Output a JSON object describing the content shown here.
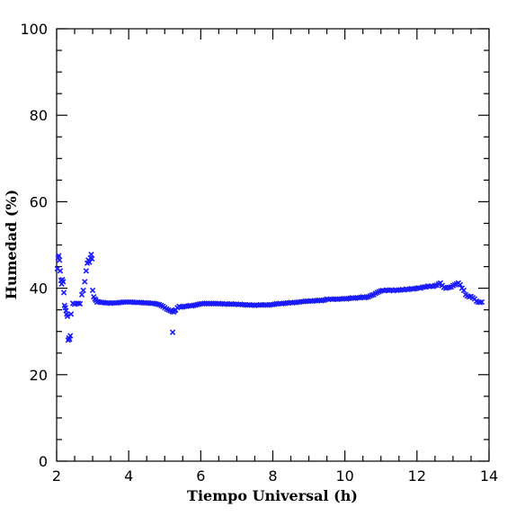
{
  "chart_data": {
    "type": "scatter",
    "xlabel": "Tiempo Universal (h)",
    "ylabel": "Humedad (%)",
    "xlim": [
      2,
      14
    ],
    "ylim": [
      0,
      100
    ],
    "x_ticks": [
      "2",
      "4",
      "6",
      "8",
      "10",
      "12",
      "14"
    ],
    "y_ticks": [
      "0",
      "20",
      "40",
      "60",
      "80",
      "100"
    ],
    "marker": "x",
    "grid": false,
    "legend": "none",
    "color": "#1a1aff",
    "series": [
      {
        "points": [
          [
            2.02,
            44.5
          ],
          [
            2.04,
            47.0
          ],
          [
            2.06,
            47.5
          ],
          [
            2.08,
            46.5
          ],
          [
            2.1,
            44.0
          ],
          [
            2.12,
            41.8
          ],
          [
            2.14,
            41.0
          ],
          [
            2.16,
            42.0
          ],
          [
            2.18,
            41.5
          ],
          [
            2.2,
            39.0
          ],
          [
            2.22,
            36.0
          ],
          [
            2.24,
            35.5
          ],
          [
            2.26,
            34.8
          ],
          [
            2.28,
            34.0
          ],
          [
            2.3,
            33.5
          ],
          [
            2.32,
            28.0
          ],
          [
            2.34,
            28.5
          ],
          [
            2.36,
            28.2
          ],
          [
            2.38,
            29.0
          ],
          [
            2.4,
            34.0
          ],
          [
            2.45,
            36.5
          ],
          [
            2.5,
            36.3
          ],
          [
            2.55,
            36.5
          ],
          [
            2.6,
            36.5
          ],
          [
            2.65,
            36.4
          ],
          [
            2.7,
            38.5
          ],
          [
            2.74,
            39.5
          ],
          [
            2.78,
            41.5
          ],
          [
            2.82,
            44.0
          ],
          [
            2.85,
            45.8
          ],
          [
            2.88,
            46.5
          ],
          [
            2.91,
            46.0
          ],
          [
            2.94,
            47.0
          ],
          [
            2.96,
            47.8
          ],
          [
            2.98,
            46.8
          ],
          [
            3.0,
            39.5
          ],
          [
            3.03,
            38.0
          ],
          [
            3.06,
            37.5
          ],
          [
            3.09,
            37.2
          ],
          [
            3.12,
            36.8
          ],
          [
            3.15,
            36.9
          ],
          [
            3.2,
            36.8
          ],
          [
            3.25,
            36.7
          ],
          [
            3.3,
            36.7
          ],
          [
            3.35,
            36.6
          ],
          [
            3.4,
            36.6
          ],
          [
            3.45,
            36.6
          ],
          [
            3.5,
            36.5
          ],
          [
            3.55,
            36.6
          ],
          [
            3.6,
            36.6
          ],
          [
            3.65,
            36.6
          ],
          [
            3.7,
            36.6
          ],
          [
            3.75,
            36.7
          ],
          [
            3.8,
            36.7
          ],
          [
            3.85,
            36.8
          ],
          [
            3.9,
            36.8
          ],
          [
            3.95,
            36.8
          ],
          [
            4.0,
            36.8
          ],
          [
            4.05,
            36.8
          ],
          [
            4.1,
            36.8
          ],
          [
            4.15,
            36.7
          ],
          [
            4.2,
            36.7
          ],
          [
            4.25,
            36.7
          ],
          [
            4.3,
            36.7
          ],
          [
            4.35,
            36.7
          ],
          [
            4.4,
            36.6
          ],
          [
            4.45,
            36.6
          ],
          [
            4.5,
            36.6
          ],
          [
            4.55,
            36.6
          ],
          [
            4.6,
            36.5
          ],
          [
            4.65,
            36.5
          ],
          [
            4.7,
            36.5
          ],
          [
            4.75,
            36.4
          ],
          [
            4.8,
            36.3
          ],
          [
            4.85,
            36.2
          ],
          [
            4.9,
            36.0
          ],
          [
            4.95,
            35.8
          ],
          [
            5.0,
            35.5
          ],
          [
            5.05,
            35.2
          ],
          [
            5.1,
            35.0
          ],
          [
            5.15,
            34.8
          ],
          [
            5.2,
            34.6
          ],
          [
            5.22,
            29.8
          ],
          [
            5.25,
            34.5
          ],
          [
            5.28,
            34.8
          ],
          [
            5.3,
            35.0
          ],
          [
            5.35,
            35.5
          ],
          [
            5.4,
            35.8
          ],
          [
            5.45,
            35.6
          ],
          [
            5.5,
            35.7
          ],
          [
            5.55,
            35.8
          ],
          [
            5.6,
            35.8
          ],
          [
            5.65,
            35.9
          ],
          [
            5.7,
            36.0
          ],
          [
            5.75,
            35.9
          ],
          [
            5.8,
            36.0
          ],
          [
            5.85,
            36.1
          ],
          [
            5.9,
            36.2
          ],
          [
            5.95,
            36.3
          ],
          [
            6.0,
            36.4
          ],
          [
            6.05,
            36.4
          ],
          [
            6.1,
            36.5
          ],
          [
            6.15,
            36.5
          ],
          [
            6.2,
            36.4
          ],
          [
            6.25,
            36.4
          ],
          [
            6.3,
            36.5
          ],
          [
            6.35,
            36.5
          ],
          [
            6.4,
            36.4
          ],
          [
            6.45,
            36.4
          ],
          [
            6.5,
            36.5
          ],
          [
            6.55,
            36.4
          ],
          [
            6.6,
            36.4
          ],
          [
            6.65,
            36.3
          ],
          [
            6.7,
            36.4
          ],
          [
            6.75,
            36.3
          ],
          [
            6.8,
            36.3
          ],
          [
            6.85,
            36.4
          ],
          [
            6.9,
            36.3
          ],
          [
            6.95,
            36.3
          ],
          [
            7.0,
            36.3
          ],
          [
            7.05,
            36.2
          ],
          [
            7.1,
            36.3
          ],
          [
            7.15,
            36.2
          ],
          [
            7.2,
            36.2
          ],
          [
            7.25,
            36.1
          ],
          [
            7.3,
            36.1
          ],
          [
            7.35,
            36.2
          ],
          [
            7.4,
            36.1
          ],
          [
            7.45,
            36.1
          ],
          [
            7.5,
            36.0
          ],
          [
            7.55,
            36.1
          ],
          [
            7.6,
            36.1
          ],
          [
            7.65,
            36.2
          ],
          [
            7.7,
            36.1
          ],
          [
            7.75,
            36.1
          ],
          [
            7.8,
            36.2
          ],
          [
            7.85,
            36.1
          ],
          [
            7.9,
            36.1
          ],
          [
            7.95,
            36.2
          ],
          [
            8.0,
            36.2
          ],
          [
            8.05,
            36.3
          ],
          [
            8.1,
            36.4
          ],
          [
            8.15,
            36.4
          ],
          [
            8.2,
            36.5
          ],
          [
            8.25,
            36.4
          ],
          [
            8.3,
            36.5
          ],
          [
            8.35,
            36.5
          ],
          [
            8.4,
            36.6
          ],
          [
            8.45,
            36.6
          ],
          [
            8.5,
            36.7
          ],
          [
            8.55,
            36.6
          ],
          [
            8.6,
            36.7
          ],
          [
            8.65,
            36.7
          ],
          [
            8.7,
            36.8
          ],
          [
            8.75,
            36.8
          ],
          [
            8.8,
            36.9
          ],
          [
            8.85,
            36.9
          ],
          [
            8.9,
            37.0
          ],
          [
            8.95,
            37.0
          ],
          [
            9.0,
            37.0
          ],
          [
            9.05,
            37.1
          ],
          [
            9.1,
            37.0
          ],
          [
            9.15,
            37.1
          ],
          [
            9.2,
            37.1
          ],
          [
            9.25,
            37.2
          ],
          [
            9.3,
            37.2
          ],
          [
            9.35,
            37.1
          ],
          [
            9.4,
            37.2
          ],
          [
            9.45,
            37.3
          ],
          [
            9.5,
            37.5
          ],
          [
            9.55,
            37.4
          ],
          [
            9.6,
            37.5
          ],
          [
            9.65,
            37.4
          ],
          [
            9.7,
            37.5
          ],
          [
            9.75,
            37.5
          ],
          [
            9.8,
            37.4
          ],
          [
            9.85,
            37.5
          ],
          [
            9.9,
            37.5
          ],
          [
            9.95,
            37.6
          ],
          [
            10.0,
            37.6
          ],
          [
            10.05,
            37.5
          ],
          [
            10.1,
            37.6
          ],
          [
            10.15,
            37.7
          ],
          [
            10.2,
            37.8
          ],
          [
            10.25,
            37.7
          ],
          [
            10.3,
            37.7
          ],
          [
            10.35,
            37.8
          ],
          [
            10.4,
            37.8
          ],
          [
            10.45,
            37.9
          ],
          [
            10.5,
            38.0
          ],
          [
            10.55,
            37.8
          ],
          [
            10.6,
            37.9
          ],
          [
            10.65,
            38.0
          ],
          [
            10.7,
            38.2
          ],
          [
            10.75,
            38.4
          ],
          [
            10.8,
            38.5
          ],
          [
            10.85,
            38.8
          ],
          [
            10.9,
            39.0
          ],
          [
            10.95,
            39.2
          ],
          [
            11.0,
            39.4
          ],
          [
            11.05,
            39.5
          ],
          [
            11.1,
            39.4
          ],
          [
            11.15,
            39.6
          ],
          [
            11.2,
            39.5
          ],
          [
            11.25,
            39.5
          ],
          [
            11.3,
            39.6
          ],
          [
            11.35,
            39.4
          ],
          [
            11.4,
            39.6
          ],
          [
            11.45,
            39.5
          ],
          [
            11.5,
            39.6
          ],
          [
            11.55,
            39.6
          ],
          [
            11.6,
            39.7
          ],
          [
            11.65,
            39.6
          ],
          [
            11.7,
            39.8
          ],
          [
            11.75,
            39.7
          ],
          [
            11.8,
            39.8
          ],
          [
            11.85,
            39.9
          ],
          [
            11.9,
            39.8
          ],
          [
            11.95,
            39.9
          ],
          [
            12.0,
            40.0
          ],
          [
            12.05,
            40.1
          ],
          [
            12.1,
            40.0
          ],
          [
            12.15,
            40.2
          ],
          [
            12.2,
            40.3
          ],
          [
            12.25,
            40.3
          ],
          [
            12.3,
            40.5
          ],
          [
            12.35,
            40.4
          ],
          [
            12.4,
            40.5
          ],
          [
            12.45,
            40.4
          ],
          [
            12.5,
            40.6
          ],
          [
            12.55,
            40.7
          ],
          [
            12.6,
            41.0
          ],
          [
            12.65,
            41.2
          ],
          [
            12.7,
            40.6
          ],
          [
            12.75,
            40.2
          ],
          [
            12.8,
            40.0
          ],
          [
            12.85,
            40.1
          ],
          [
            12.9,
            40.2
          ],
          [
            12.95,
            40.3
          ],
          [
            13.0,
            40.6
          ],
          [
            13.05,
            40.8
          ],
          [
            13.1,
            41.0
          ],
          [
            13.15,
            41.2
          ],
          [
            13.2,
            40.8
          ],
          [
            13.25,
            40.0
          ],
          [
            13.3,
            39.5
          ],
          [
            13.35,
            38.5
          ],
          [
            13.4,
            38.2
          ],
          [
            13.45,
            38.0
          ],
          [
            13.5,
            38.1
          ],
          [
            13.55,
            37.8
          ],
          [
            13.6,
            37.5
          ],
          [
            13.65,
            37.0
          ],
          [
            13.7,
            36.8
          ],
          [
            13.75,
            36.7
          ],
          [
            13.8,
            36.8
          ]
        ]
      }
    ]
  }
}
